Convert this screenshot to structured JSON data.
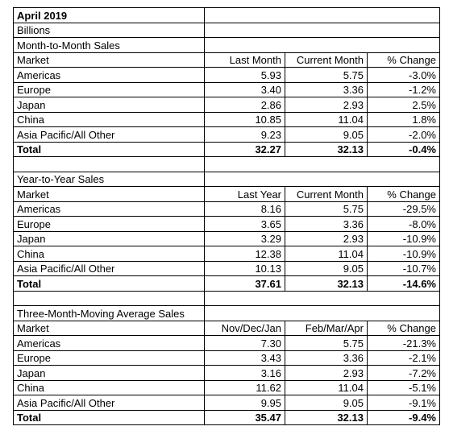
{
  "header": {
    "date": "April 2019",
    "unit": "Billions"
  },
  "sections": [
    {
      "title": "Month-to-Month Sales",
      "columns": [
        "Market",
        "Last Month",
        "Current Month",
        "% Change"
      ],
      "rows": [
        [
          "Americas",
          "5.93",
          "5.75",
          "-3.0%"
        ],
        [
          "Europe",
          "3.40",
          "3.36",
          "-1.2%"
        ],
        [
          "Japan",
          "2.86",
          "2.93",
          "2.5%"
        ],
        [
          "China",
          "10.85",
          "11.04",
          "1.8%"
        ],
        [
          "Asia Pacific/All Other",
          "9.23",
          "9.05",
          "-2.0%"
        ]
      ],
      "total": [
        "Total",
        "32.27",
        "32.13",
        "-0.4%"
      ]
    },
    {
      "title": "Year-to-Year Sales",
      "columns": [
        "Market",
        "Last Year",
        "Current Month",
        "% Change"
      ],
      "rows": [
        [
          "Americas",
          "8.16",
          "5.75",
          "-29.5%"
        ],
        [
          "Europe",
          "3.65",
          "3.36",
          "-8.0%"
        ],
        [
          "Japan",
          "3.29",
          "2.93",
          "-10.9%"
        ],
        [
          "China",
          "12.38",
          "11.04",
          "-10.9%"
        ],
        [
          "Asia Pacific/All Other",
          "10.13",
          "9.05",
          "-10.7%"
        ]
      ],
      "total": [
        "Total",
        "37.61",
        "32.13",
        "-14.6%"
      ]
    },
    {
      "title": "Three-Month-Moving Average Sales",
      "columns": [
        "Market",
        "Nov/Dec/Jan",
        "Feb/Mar/Apr",
        "% Change"
      ],
      "rows": [
        [
          "Americas",
          "7.30",
          "5.75",
          "-21.3%"
        ],
        [
          "Europe",
          "3.43",
          "3.36",
          "-2.1%"
        ],
        [
          "Japan",
          "3.16",
          "2.93",
          "-7.2%"
        ],
        [
          "China",
          "11.62",
          "11.04",
          "-5.1%"
        ],
        [
          "Asia Pacific/All Other",
          "9.95",
          "9.05",
          "-9.1%"
        ]
      ],
      "total": [
        "Total",
        "35.47",
        "32.13",
        "-9.4%"
      ]
    }
  ]
}
